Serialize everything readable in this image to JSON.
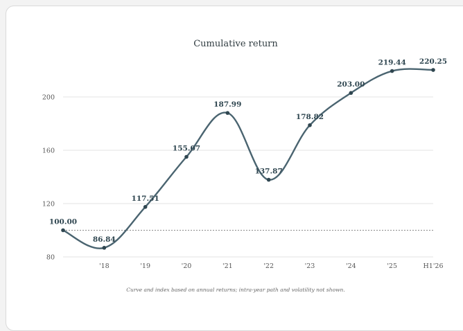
{
  "chart_data": {
    "type": "line",
    "title": "Cumulative return",
    "note": "Curve and index based on annual returns; intra-year path and volatility not shown.",
    "x": [
      "",
      "'18",
      "'19",
      "'20",
      "'21",
      "'22",
      "'23",
      "'24",
      "'25",
      "H1'26"
    ],
    "series": [
      {
        "values": [
          100.0,
          86.84,
          117.51,
          155.07,
          187.99,
          137.87,
          178.82,
          203.0,
          219.44,
          220.25
        ],
        "labels": [
          "100.00",
          "86.84",
          "117.51",
          "155.07",
          "187.99",
          "137.87",
          "178.82",
          "203.00",
          "219.44",
          "220.25"
        ]
      }
    ],
    "yticks": [
      80,
      120,
      160,
      200
    ],
    "ylim": [
      80,
      220
    ],
    "baseline": 100,
    "grid": true,
    "colors": {
      "line": "#4a6470",
      "point": "#2f4650",
      "grid": "#e3e3e3",
      "baseline": "#888888"
    }
  }
}
